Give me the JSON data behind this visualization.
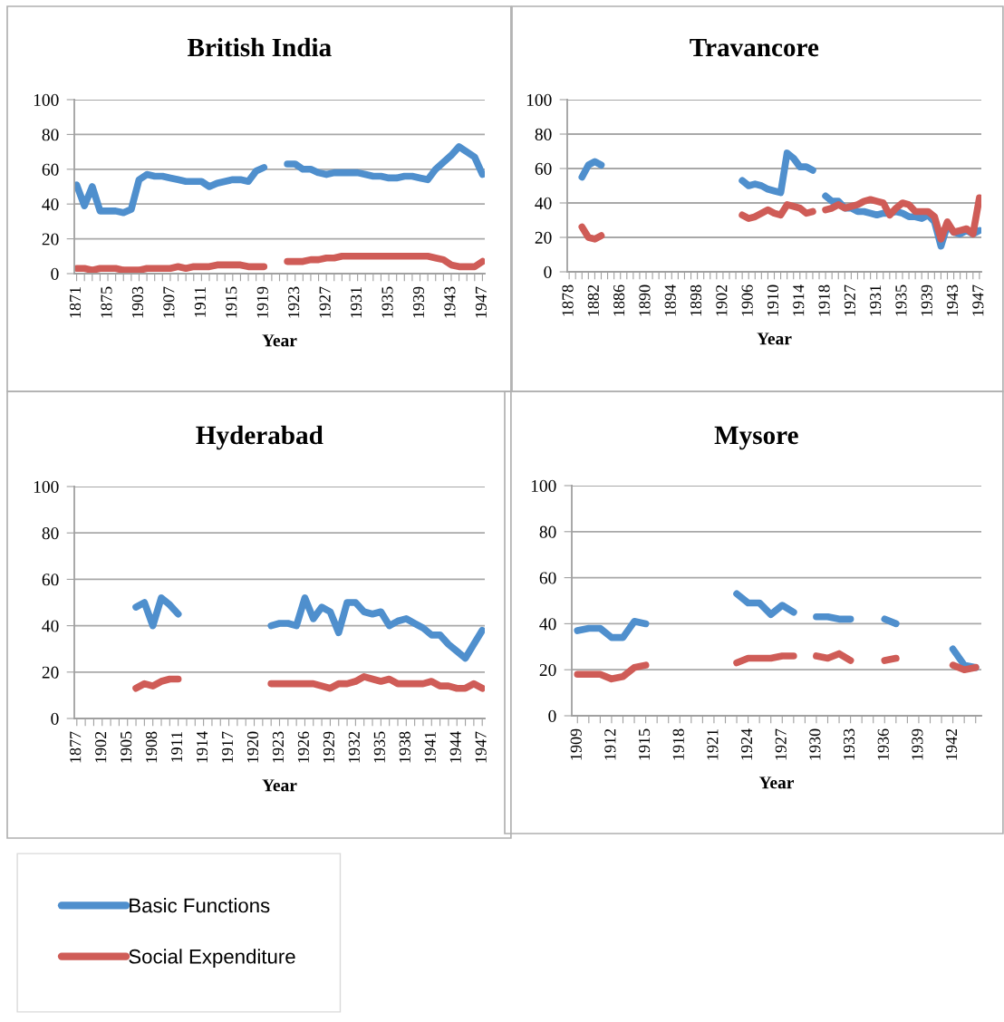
{
  "chart_data": [
    {
      "type": "line",
      "title": "British India",
      "xlabel": "Year",
      "ylim": [
        0,
        100
      ],
      "yticks": [
        0,
        20,
        40,
        60,
        80,
        100
      ],
      "grid": "y",
      "legend": "bottom left",
      "categories": [
        "1871",
        null,
        null,
        null,
        "1875",
        null,
        null,
        null,
        "1903",
        null,
        null,
        null,
        "1907",
        null,
        null,
        null,
        "1911",
        null,
        null,
        null,
        "1915",
        null,
        null,
        null,
        "1919",
        null,
        null,
        null,
        "1923",
        null,
        null,
        null,
        "1927",
        null,
        null,
        null,
        "1931",
        null,
        null,
        null,
        "1935",
        null,
        null,
        null,
        "1939",
        null,
        null,
        null,
        "1943",
        null,
        null,
        null,
        "1947"
      ],
      "series": [
        {
          "name": "Basic Functions",
          "color": "#4f8fcd",
          "values": [
            51,
            39,
            50,
            36,
            36,
            36,
            35,
            37,
            54,
            57,
            56,
            56,
            55,
            54,
            53,
            53,
            53,
            50,
            52,
            53,
            54,
            54,
            53,
            59,
            61,
            null,
            null,
            63,
            63,
            60,
            60,
            58,
            57,
            58,
            58,
            58,
            58,
            57,
            56,
            56,
            55,
            55,
            56,
            56,
            55,
            54,
            60,
            64,
            68,
            73,
            70,
            67,
            57
          ]
        },
        {
          "name": "Social Expenditure",
          "color": "#cf5c57",
          "values": [
            3,
            3,
            2,
            3,
            3,
            3,
            2,
            2,
            2,
            3,
            3,
            3,
            3,
            4,
            3,
            4,
            4,
            4,
            5,
            5,
            5,
            5,
            4,
            4,
            4,
            null,
            null,
            7,
            7,
            7,
            8,
            8,
            9,
            9,
            10,
            10,
            10,
            10,
            10,
            10,
            10,
            10,
            10,
            10,
            10,
            10,
            9,
            8,
            5,
            4,
            4,
            4,
            7
          ]
        }
      ]
    },
    {
      "type": "line",
      "title": "Travancore",
      "xlabel": "Year",
      "ylim": [
        0,
        100
      ],
      "yticks": [
        0,
        20,
        40,
        60,
        80,
        100
      ],
      "grid": "y",
      "categories": [
        "1878",
        null,
        null,
        null,
        "1882",
        null,
        null,
        null,
        "1886",
        null,
        null,
        null,
        "1890",
        null,
        null,
        null,
        "1894",
        null,
        null,
        null,
        "1898",
        null,
        null,
        null,
        "1902",
        null,
        null,
        null,
        "1906",
        null,
        null,
        null,
        "1910",
        null,
        null,
        null,
        "1914",
        null,
        null,
        null,
        "1918",
        null,
        null,
        null,
        "1927",
        null,
        null,
        null,
        "1931",
        null,
        null,
        null,
        "1935",
        null,
        null,
        null,
        "1939",
        null,
        null,
        null,
        "1943",
        null,
        null,
        null,
        "1947"
      ],
      "series": [
        {
          "name": "Basic Functions",
          "color": "#4f8fcd",
          "values": [
            null,
            null,
            55,
            62,
            64,
            62,
            null,
            null,
            null,
            null,
            null,
            null,
            null,
            null,
            null,
            null,
            null,
            null,
            null,
            null,
            null,
            null,
            null,
            null,
            null,
            null,
            null,
            53,
            50,
            51,
            50,
            48,
            47,
            46,
            69,
            66,
            61,
            61,
            59,
            null,
            44,
            41,
            41,
            37,
            37,
            35,
            35,
            34,
            33,
            34,
            34,
            35,
            34,
            32,
            32,
            31,
            33,
            29,
            15,
            27,
            23,
            22,
            24,
            22,
            24
          ]
        },
        {
          "name": "Social Expenditure",
          "color": "#cf5c57",
          "values": [
            null,
            null,
            26,
            20,
            19,
            21,
            null,
            null,
            null,
            null,
            null,
            null,
            null,
            null,
            null,
            null,
            null,
            null,
            null,
            null,
            null,
            null,
            null,
            null,
            null,
            null,
            null,
            33,
            31,
            32,
            34,
            36,
            34,
            33,
            39,
            38,
            37,
            34,
            35,
            null,
            36,
            37,
            39,
            37,
            38,
            39,
            41,
            42,
            41,
            40,
            33,
            37,
            40,
            39,
            35,
            35,
            35,
            32,
            19,
            29,
            23,
            24,
            25,
            22,
            43
          ]
        }
      ]
    },
    {
      "type": "line",
      "title": "Hyderabad",
      "xlabel": "Year",
      "ylim": [
        0,
        100
      ],
      "yticks": [
        0,
        20,
        40,
        60,
        80,
        100
      ],
      "grid": "y",
      "categories": [
        "1877",
        null,
        null,
        "1902",
        null,
        null,
        "1905",
        null,
        null,
        "1908",
        null,
        null,
        "1911",
        null,
        null,
        "1914",
        null,
        null,
        "1917",
        null,
        null,
        "1920",
        null,
        null,
        "1923",
        null,
        null,
        "1926",
        null,
        null,
        "1929",
        null,
        null,
        "1932",
        null,
        null,
        "1935",
        null,
        null,
        "1938",
        null,
        null,
        "1941",
        null,
        null,
        "1944",
        null,
        null,
        "1947"
      ],
      "series": [
        {
          "name": "Basic Functions",
          "color": "#4f8fcd",
          "values": [
            null,
            null,
            null,
            null,
            null,
            null,
            null,
            48,
            50,
            40,
            52,
            49,
            45,
            null,
            null,
            null,
            null,
            null,
            null,
            null,
            null,
            null,
            null,
            40,
            41,
            41,
            40,
            52,
            43,
            48,
            46,
            37,
            50,
            50,
            46,
            45,
            46,
            40,
            42,
            43,
            41,
            39,
            36,
            36,
            32,
            29,
            26,
            32,
            38
          ]
        },
        {
          "name": "Social Expenditure",
          "color": "#cf5c57",
          "values": [
            null,
            null,
            null,
            null,
            null,
            null,
            null,
            13,
            15,
            14,
            16,
            17,
            17,
            null,
            null,
            null,
            null,
            null,
            null,
            null,
            null,
            null,
            null,
            15,
            15,
            15,
            15,
            15,
            15,
            14,
            13,
            15,
            15,
            16,
            18,
            17,
            16,
            17,
            15,
            15,
            15,
            15,
            16,
            14,
            14,
            13,
            13,
            15,
            13
          ]
        }
      ]
    },
    {
      "type": "line",
      "title": "Mysore",
      "xlabel": "Year",
      "ylim": [
        0,
        100
      ],
      "yticks": [
        0,
        20,
        40,
        60,
        80,
        100
      ],
      "grid": "y",
      "categories": [
        "1909",
        null,
        null,
        "1912",
        null,
        null,
        "1915",
        null,
        null,
        "1918",
        null,
        null,
        "1921",
        null,
        null,
        "1924",
        null,
        null,
        "1927",
        null,
        null,
        "1930",
        null,
        null,
        "1933",
        null,
        null,
        "1936",
        null,
        null,
        "1939",
        null,
        null,
        "1942",
        null,
        null
      ],
      "series": [
        {
          "name": "Basic Functions",
          "color": "#4f8fcd",
          "values": [
            37,
            38,
            38,
            34,
            34,
            41,
            40,
            null,
            null,
            null,
            null,
            null,
            null,
            null,
            53,
            49,
            49,
            44,
            48,
            45,
            null,
            43,
            43,
            42,
            42,
            null,
            null,
            42,
            40,
            null,
            null,
            null,
            null,
            29,
            22,
            21
          ]
        },
        {
          "name": "Social Expenditure",
          "color": "#cf5c57",
          "values": [
            18,
            18,
            18,
            16,
            17,
            21,
            22,
            null,
            null,
            null,
            null,
            null,
            null,
            null,
            23,
            25,
            25,
            25,
            26,
            26,
            null,
            26,
            25,
            27,
            24,
            null,
            null,
            24,
            25,
            null,
            null,
            null,
            null,
            22,
            20,
            21
          ]
        }
      ]
    }
  ]
}
